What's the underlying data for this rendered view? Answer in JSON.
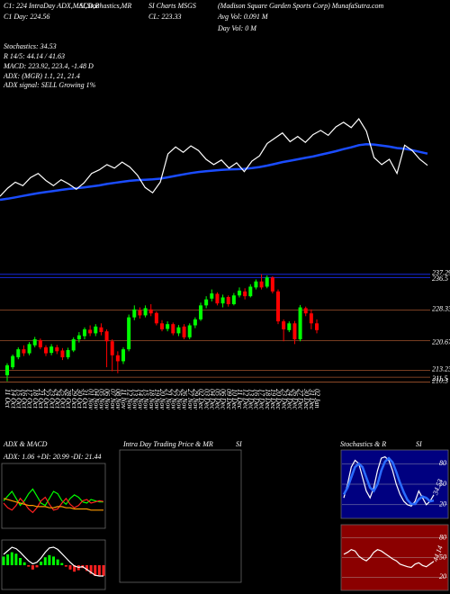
{
  "header": {
    "top": [
      "C1: 224 IntraDay ADX,MACD,B",
      "SI,Stochastics,MR",
      "SI Charts MSGS",
      "(Madison Square Garden Sports Corp) MunafaSutra.com",
      "C1 Day: 224.56",
      "CL: 223.33",
      "Avg Vol: 0.091 M",
      "Day Vol: 0  M"
    ],
    "stats": [
      "Stochastics: 34.53",
      "R 14/5: 44.14 / 41.63",
      "MACD: 223.92, 223.4, -1.48 D",
      "ADX: (MGR) 1.1, 21, 21.4",
      "ADX signal: SELL Growing 1%"
    ]
  },
  "chart_data": [
    {
      "type": "line",
      "color": "#ffffff",
      "ma_color": "#1a4cff",
      "ma": [
        213.5,
        213.8,
        214.2,
        214.6,
        215.0,
        215.4,
        215.7,
        216.0,
        216.3,
        216.6,
        216.8,
        217.0,
        217.3,
        217.6,
        218.0,
        218.3,
        218.6,
        218.9,
        219.1,
        219.2,
        219.3,
        219.5,
        219.9,
        220.3,
        220.7,
        221.1,
        221.4,
        221.6,
        221.8,
        222.0,
        222.1,
        222.2,
        222.3,
        222.5,
        222.8,
        223.2,
        223.7,
        224.2,
        224.6,
        225.0,
        225.4,
        225.8,
        226.3,
        226.8,
        227.3,
        227.9,
        228.4,
        229.0,
        229.3,
        229.2,
        228.9,
        228.6,
        228.2,
        228.0,
        227.6,
        227.1,
        226.6
      ]
    },
    {
      "type": "candlestick",
      "up_color": "#00ff00",
      "down_color": "#ff0000",
      "categories": [
        "11 Oct",
        "14 Oct",
        "15 Oct",
        "16 Oct",
        "17 Oct",
        "18 Oct",
        "21 Oct",
        "22 Oct",
        "23 Oct",
        "24 Oct",
        "25 Oct",
        "28 Oct",
        "29 Oct",
        "30 Oct",
        "31 Oct",
        "01 Nov",
        "04 Nov",
        "05 Nov",
        "06 Nov",
        "07 Nov",
        "08 Nov",
        "11 Nov",
        "12 Nov",
        "13 Nov",
        "14 Nov",
        "15 Nov",
        "18 Nov",
        "19 Nov",
        "20 Nov",
        "21 Nov",
        "22 Nov",
        "25 Nov",
        "26 Nov",
        "27 Nov",
        "29 Nov",
        "02 Dec",
        "03 Dec",
        "04 Dec",
        "05 Dec",
        "06 Dec",
        "09 Dec",
        "10 Dec",
        "11 Dec",
        "12 Dec",
        "13 Dec",
        "16 Dec",
        "17 Dec",
        "18 Dec",
        "19 Dec",
        "20 Dec",
        "23 Dec",
        "24 Dec",
        "26 Dec",
        "27 Dec",
        "30 Dec",
        "31 Dec",
        "02 Jan"
      ],
      "open": [
        212.0,
        214.0,
        216.5,
        218.5,
        217.5,
        219.5,
        220.8,
        219.0,
        217.6,
        219.0,
        218.2,
        216.5,
        218.2,
        221.0,
        221.8,
        223.4,
        222.5,
        224.0,
        223.0,
        220.5,
        217.0,
        215.5,
        218.5,
        226.5,
        228.3,
        227.0,
        228.5,
        227.6,
        225.0,
        223.6,
        224.8,
        222.5,
        224.2,
        221.5,
        224.5,
        226.0,
        229.5,
        231.2,
        232.4,
        230.0,
        231.6,
        229.8,
        232.0,
        233.0,
        231.8,
        234.0,
        235.5,
        234.2,
        236.5,
        233.0,
        225.5,
        223.3,
        225.0,
        221.0,
        228.8,
        227.5,
        225.0
      ],
      "high": [
        215.0,
        217.2,
        219.0,
        219.5,
        220.3,
        221.6,
        221.2,
        219.5,
        219.8,
        219.6,
        218.8,
        218.9,
        221.5,
        222.8,
        224.0,
        224.5,
        224.8,
        225.0,
        223.5,
        221.0,
        218.0,
        219.0,
        227.2,
        229.5,
        229.0,
        229.5,
        229.8,
        228.0,
        225.8,
        225.5,
        225.2,
        224.6,
        224.8,
        225.0,
        226.5,
        230.2,
        231.8,
        233.5,
        232.8,
        232.2,
        232.0,
        232.6,
        234.0,
        233.8,
        234.8,
        236.0,
        237.3,
        237.0,
        236.8,
        233.5,
        226.0,
        225.5,
        225.6,
        229.6,
        229.2,
        228.5,
        226.0
      ],
      "low": [
        210.5,
        213.5,
        216.0,
        216.8,
        217.0,
        219.0,
        218.5,
        216.8,
        217.0,
        217.3,
        215.8,
        216.0,
        217.8,
        220.2,
        221.0,
        221.8,
        221.8,
        222.0,
        214.0,
        213.0,
        212.5,
        214.8,
        218.0,
        225.8,
        226.2,
        226.5,
        226.8,
        224.5,
        223.0,
        223.0,
        222.0,
        221.8,
        221.0,
        221.0,
        223.8,
        225.6,
        228.8,
        230.5,
        229.5,
        229.0,
        229.2,
        229.5,
        231.5,
        231.0,
        231.5,
        233.5,
        233.5,
        233.8,
        232.5,
        224.8,
        220.5,
        222.8,
        219.8,
        220.5,
        226.8,
        223.5,
        222.5
      ],
      "close": [
        214.5,
        216.8,
        218.5,
        217.5,
        219.8,
        221.0,
        219.0,
        217.5,
        219.2,
        218.0,
        216.5,
        218.3,
        221.0,
        222.0,
        223.5,
        222.5,
        224.2,
        222.8,
        220.5,
        217.0,
        215.5,
        218.5,
        226.5,
        228.5,
        227.0,
        228.8,
        227.5,
        225.0,
        223.5,
        224.8,
        222.5,
        224.0,
        221.5,
        224.5,
        226.0,
        229.5,
        231.0,
        232.5,
        230.0,
        231.5,
        229.8,
        232.0,
        233.2,
        231.8,
        234.2,
        235.5,
        234.0,
        236.5,
        233.0,
        225.5,
        223.5,
        225.0,
        221.0,
        229.0,
        227.5,
        225.0,
        223.3
      ],
      "ylim": [
        209.5,
        239.5
      ],
      "yticks": [
        237.29,
        236.5,
        228.33,
        220.67,
        213.23,
        211.5,
        210.3
      ],
      "level_colors": [
        "#1a2fff",
        "#1a2fff",
        "#a0522d",
        "#a0522d",
        "#a0522d",
        "#a0522d",
        "#a0522d"
      ]
    },
    {
      "type": "adx",
      "title": "ADX & MACD",
      "subtitle": "ADX: 1.06 +DI: 20.99 -DI: 21.44",
      "ylim": [
        0,
        50
      ],
      "series": [
        {
          "color": "#00ff00",
          "values": [
            22,
            26,
            30,
            24,
            18,
            22,
            28,
            32,
            26,
            20,
            18,
            24,
            30,
            28,
            22,
            19,
            24,
            27,
            25,
            21,
            20,
            23,
            22,
            21,
            21
          ]
        },
        {
          "color": "#ff2020",
          "values": [
            20,
            16,
            14,
            18,
            24,
            20,
            15,
            12,
            16,
            22,
            25,
            19,
            14,
            15,
            20,
            24,
            19,
            16,
            18,
            22,
            23,
            20,
            21,
            22,
            21.4
          ]
        },
        {
          "color": "#ff9900",
          "values": [
            24,
            23,
            22,
            21,
            20,
            19,
            18,
            18,
            17,
            17,
            17,
            16,
            16,
            17,
            17,
            16,
            16,
            15,
            15,
            15,
            15,
            14,
            14,
            14,
            14
          ]
        }
      ]
    },
    {
      "type": "macd",
      "ylim": [
        -3,
        3
      ],
      "up_color": "#00ff00",
      "down_color": "#ff2020",
      "line_color": "#ffffff",
      "hist": [
        1.2,
        1.5,
        1.8,
        1.6,
        1.0,
        0.4,
        -0.2,
        -0.6,
        -0.3,
        0.5,
        1.1,
        1.4,
        1.2,
        0.8,
        0.3,
        -0.2,
        -0.6,
        -0.9,
        -0.7,
        -0.4,
        -0.8,
        -1.2,
        -1.5,
        -1.4,
        -1.48
      ],
      "line": [
        1.5,
        2.0,
        2.5,
        2.3,
        1.8,
        1.2,
        0.6,
        0.2,
        0.4,
        1.0,
        1.8,
        2.4,
        2.5,
        2.2,
        1.6,
        1.0,
        0.4,
        -0.1,
        -0.3,
        -0.2,
        -0.6,
        -1.0,
        -1.4,
        -1.5,
        -1.5
      ]
    },
    {
      "type": "intraday",
      "title": "Intra Day Trading Price & MR",
      "title2": "SI"
    },
    {
      "type": "stochastics",
      "title": "Stochastics & R",
      "title2": "SI",
      "ylim": [
        0,
        100
      ],
      "yticks": [
        20,
        50,
        80
      ],
      "background": "#000080",
      "series": [
        {
          "color": "#ffffff",
          "values": [
            30,
            50,
            75,
            85,
            80,
            60,
            40,
            30,
            45,
            70,
            88,
            90,
            85,
            70,
            50,
            35,
            25,
            20,
            18,
            25,
            40,
            30,
            20,
            25,
            34.53
          ]
        },
        {
          "color": "#2a6cff",
          "values": [
            35,
            45,
            60,
            75,
            80,
            75,
            60,
            45,
            40,
            50,
            70,
            83,
            88,
            82,
            68,
            52,
            38,
            27,
            21,
            21,
            28,
            32,
            30,
            25,
            26
          ]
        }
      ]
    },
    {
      "type": "rsi",
      "ylim": [
        0,
        100
      ],
      "yticks": [
        20,
        50,
        80
      ],
      "background": "#8b0000",
      "series": [
        {
          "color": "#ffffff",
          "values": [
            55,
            58,
            62,
            60,
            52,
            48,
            45,
            50,
            58,
            62,
            60,
            56,
            52,
            48,
            45,
            40,
            38,
            36,
            35,
            40,
            42,
            38,
            36,
            40,
            44.14
          ]
        }
      ]
    }
  ]
}
